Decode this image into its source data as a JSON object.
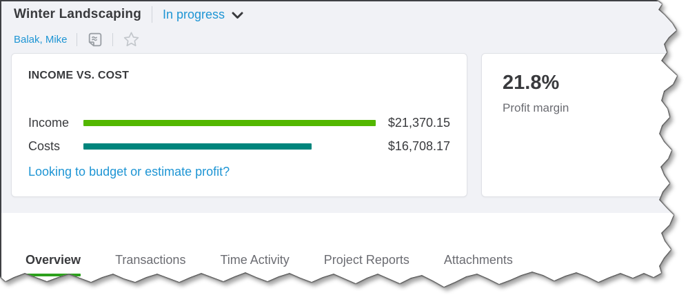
{
  "header": {
    "project_title": "Winter Landscaping",
    "status_label": "In progress",
    "customer_name": "Balak, Mike"
  },
  "income_card": {
    "title": "INCOME VS. COST",
    "rows": [
      {
        "label": "Income",
        "value": "$21,370.15",
        "amount": 21370.15,
        "width_pct": 100,
        "color": "#53b700"
      },
      {
        "label": "Costs",
        "value": "$16,708.17",
        "amount": 16708.17,
        "width_pct": 78,
        "color": "#00857c"
      }
    ],
    "link_text": "Looking to budget or estimate profit?"
  },
  "profit_card": {
    "value": "21.8%",
    "label": "Profit margin"
  },
  "tabs": [
    {
      "label": "Overview",
      "active": true
    },
    {
      "label": "Transactions",
      "active": false
    },
    {
      "label": "Time Activity",
      "active": false
    },
    {
      "label": "Project Reports",
      "active": false
    },
    {
      "label": "Attachments",
      "active": false
    }
  ],
  "chart_data": {
    "type": "bar",
    "title": "INCOME VS. COST",
    "categories": [
      "Income",
      "Costs"
    ],
    "values": [
      21370.15,
      16708.17
    ],
    "colors": [
      "#53b700",
      "#00857c"
    ]
  },
  "colors": {
    "link_blue": "#1e95d4",
    "income_green": "#53b700",
    "cost_teal": "#00857c",
    "active_tab_green": "#2ca01c"
  }
}
